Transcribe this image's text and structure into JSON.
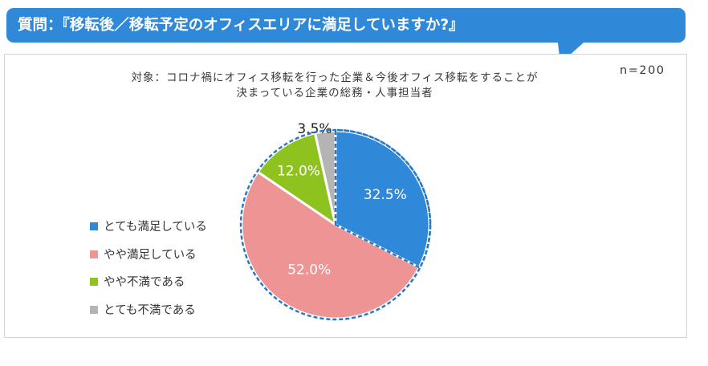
{
  "header": {
    "title": "質問：『移転後／移転予定のオフィスエリアに満足していますか?』"
  },
  "subtitle": {
    "line1": "対象：コロナ禍にオフィス移転を行った企業＆今後オフィス移転をすることが",
    "line2": "決まっている企業の総務・人事担当者"
  },
  "sample_size": "n=200",
  "colors": {
    "banner": "#2f88d8",
    "outline": "#2b78c2"
  },
  "chart_data": {
    "type": "pie",
    "categories": [
      "とても満足している",
      "やや満足している",
      "やや不満である",
      "とても不満である"
    ],
    "values": [
      32.5,
      52.0,
      12.0,
      3.5
    ],
    "value_labels": [
      "32.5%",
      "52.0%",
      "12.0%",
      "3.5%"
    ],
    "colors": [
      "#2f88d8",
      "#ee9494",
      "#8dc21f",
      "#b4b4b4"
    ],
    "start_angle": "12 o'clock",
    "direction": "clockwise",
    "legend_position": "left",
    "title": ""
  }
}
